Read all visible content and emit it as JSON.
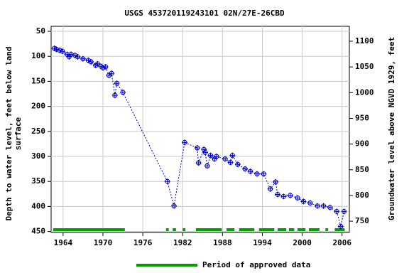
{
  "chart_data": {
    "type": "scatter",
    "title": "USGS 453720119243101 02N/27E-26CBD",
    "ylabel_lines": [
      "Depth to water level, feet below land",
      "surface"
    ],
    "y2label": "Groundwater level above NGVD 1929, feet",
    "xlim": [
      1962.2,
      2007.1
    ],
    "xticks": [
      1964,
      1970,
      1976,
      1982,
      1988,
      1994,
      2000,
      2006
    ],
    "ylim": [
      40,
      452
    ],
    "invert_y": true,
    "yticks": [
      50,
      100,
      150,
      200,
      250,
      300,
      350,
      400,
      450
    ],
    "y2lim": [
      728,
      1129
    ],
    "y2ticks": [
      750,
      800,
      850,
      900,
      950,
      1000,
      1050,
      1100
    ],
    "grid": true,
    "color": "#0000cc",
    "x": [
      1962.7,
      1963.0,
      1963.5,
      1963.9,
      1964.6,
      1964.9,
      1965.2,
      1965.8,
      1966.2,
      1967.0,
      1967.8,
      1968.2,
      1968.9,
      1969.2,
      1969.7,
      1970.0,
      1970.4,
      1970.9,
      1971.3,
      1971.8,
      1972.1,
      1973.0,
      1979.7,
      1980.7,
      1982.3,
      1984.2,
      1984.4,
      1985.2,
      1985.4,
      1985.7,
      1986.2,
      1986.8,
      1987.1,
      1988.4,
      1989.2,
      1989.5,
      1990.3,
      1991.4,
      1992.2,
      1993.2,
      1994.2,
      1995.2,
      1996.0,
      1996.3,
      1997.2,
      1998.2,
      1999.3,
      2000.2,
      2001.2,
      2002.3,
      2003.2,
      2004.2,
      2005.2,
      2005.8,
      2006.3
    ],
    "values": [
      84,
      86,
      88,
      90,
      96,
      101,
      96,
      98,
      101,
      105,
      108,
      111,
      118,
      115,
      120,
      123,
      121,
      138,
      134,
      178,
      154,
      172,
      350,
      399,
      272,
      283,
      313,
      286,
      292,
      319,
      298,
      305,
      300,
      305,
      312,
      298,
      316,
      325,
      330,
      335,
      335,
      365,
      351,
      376,
      380,
      378,
      383,
      390,
      393,
      399,
      399,
      402,
      410,
      440,
      410
    ],
    "approved_periods": [
      [
        1962.5,
        1973.3
      ],
      [
        1979.5,
        1979.9
      ],
      [
        1980.5,
        1981.0
      ],
      [
        1982.0,
        1982.4
      ],
      [
        1984.0,
        1987.9
      ],
      [
        1988.6,
        1989.8
      ],
      [
        1990.5,
        1992.8
      ],
      [
        1993.5,
        1995.8
      ],
      [
        1996.3,
        1997.6
      ],
      [
        1998.0,
        1998.8
      ],
      [
        1999.3,
        2000.5
      ],
      [
        2001.0,
        2002.6
      ],
      [
        2003.5,
        2003.9
      ],
      [
        2004.9,
        2006.4
      ]
    ],
    "approved_color": "#00a000",
    "legend": "Period of approved data"
  }
}
